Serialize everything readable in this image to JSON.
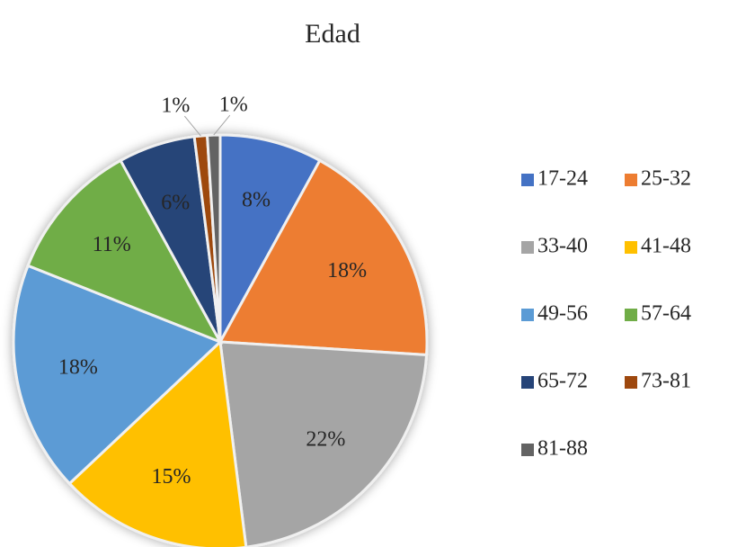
{
  "chart_data": {
    "type": "pie",
    "title": "Edad",
    "categories": [
      "17-24",
      "25-32",
      "33-40",
      "41-48",
      "49-56",
      "57-64",
      "65-72",
      "73-81",
      "81-88"
    ],
    "values": [
      8,
      18,
      22,
      15,
      18,
      11,
      6,
      1,
      1
    ],
    "value_labels": [
      "8%",
      "18%",
      "22%",
      "15%",
      "18%",
      "11%",
      "6%",
      "1%",
      "1%"
    ],
    "colors": [
      "#4472c4",
      "#ed7d31",
      "#a5a5a5",
      "#ffc000",
      "#5b9bd5",
      "#70ad47",
      "#264478",
      "#9e480e",
      "#636363"
    ],
    "legend": "right"
  }
}
